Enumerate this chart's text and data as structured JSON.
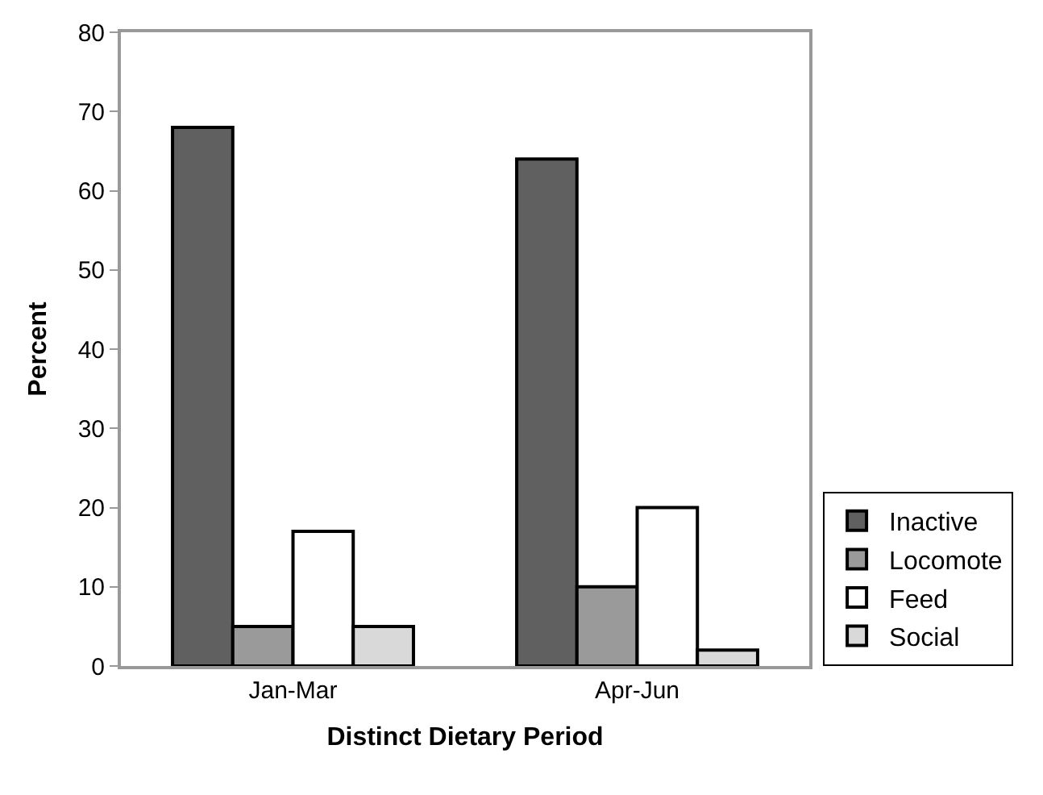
{
  "chart_data": {
    "type": "bar",
    "xlabel": "Distinct Dietary Period",
    "ylabel": "Percent",
    "categories": [
      "Jan-Mar",
      "Apr-Jun"
    ],
    "series": [
      {
        "name": "Inactive",
        "color": "#606060",
        "values": [
          68,
          64
        ]
      },
      {
        "name": "Locomote",
        "color": "#9a9a9a",
        "values": [
          5,
          10
        ]
      },
      {
        "name": "Feed",
        "color": "#ffffff",
        "values": [
          17,
          20
        ]
      },
      {
        "name": "Social",
        "color": "#d9d9d9",
        "values": [
          5,
          2
        ]
      }
    ],
    "ylim": [
      0,
      80
    ],
    "yticks": [
      0,
      10,
      20,
      30,
      40,
      50,
      60,
      70,
      80
    ],
    "legend": "bottom right"
  }
}
